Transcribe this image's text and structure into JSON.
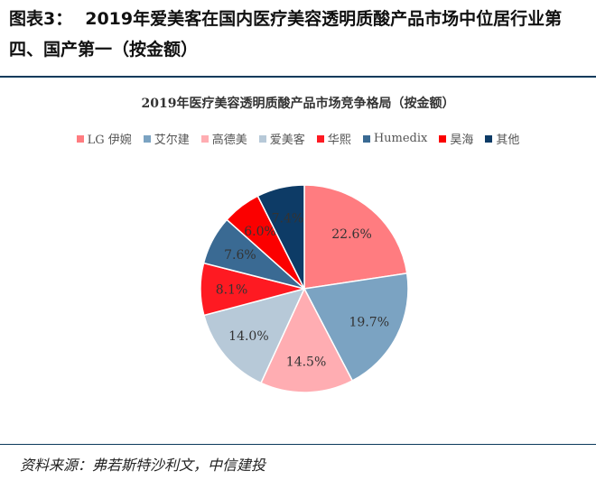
{
  "header": {
    "figure_number": "图表3：",
    "title": "2019年爱美客在国内医疗美容透明质酸产品市场中位居行业第四、国产第一（按金额）"
  },
  "chart_data": {
    "type": "pie",
    "title": "2019年医疗美容透明质酸产品市场竞争格局（按金额）",
    "legend_position": "top",
    "slices": [
      {
        "name": "LG 伊婉",
        "value": 22.6,
        "label": "22.6%",
        "color": "#ff7c80"
      },
      {
        "name": "艾尔建",
        "value": 19.7,
        "label": "19.7%",
        "color": "#7ba3c2"
      },
      {
        "name": "高德美",
        "value": 14.5,
        "label": "14.5%",
        "color": "#ffadb2"
      },
      {
        "name": "爱美客",
        "value": 14.0,
        "label": "14.0%",
        "color": "#b7c9d8"
      },
      {
        "name": "华熙",
        "value": 8.1,
        "label": "8.1%",
        "color": "#fe1a22"
      },
      {
        "name": "Humedix",
        "value": 7.6,
        "label": "7.6%",
        "color": "#3a6a93"
      },
      {
        "name": "昊海",
        "value": 6.0,
        "label": "6.0%",
        "color": "#fb0000"
      },
      {
        "name": "其他",
        "value": 7.4,
        "label": "7.4%",
        "color": "#0d3b66"
      }
    ]
  },
  "footer": {
    "source": "资料来源：弗若斯特沙利文，中信建投"
  }
}
